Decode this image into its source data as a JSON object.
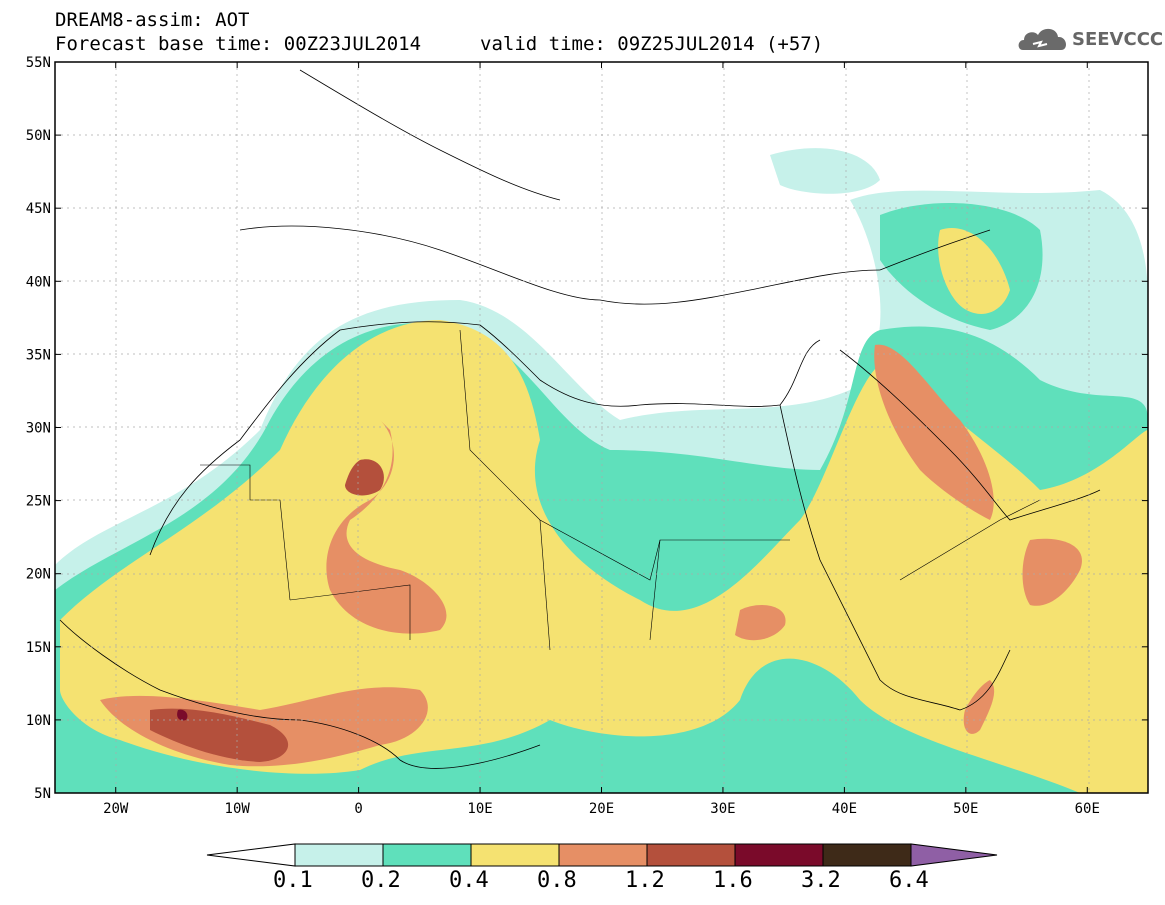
{
  "title": {
    "line1": "DREAM8-assim: AOT",
    "line2": "Forecast base time: 00Z23JUL2014",
    "valid": "valid time: 09Z25JUL2014 (+57)"
  },
  "logo": {
    "text": "SEEVCCC",
    "icon": "cloud-icon"
  },
  "map": {
    "lat_labels": [
      "55N",
      "50N",
      "45N",
      "40N",
      "35N",
      "30N",
      "25N",
      "20N",
      "15N",
      "10N",
      "5N"
    ],
    "lon_labels": [
      "20W",
      "10W",
      "0",
      "10E",
      "20E",
      "30E",
      "40E",
      "50E",
      "60E"
    ],
    "lon_range": [
      -25,
      65
    ],
    "lat_range": [
      5,
      55
    ]
  },
  "colorbar": {
    "labels": [
      "0.1",
      "0.2",
      "0.4",
      "0.8",
      "1.2",
      "1.6",
      "3.2",
      "6.4"
    ],
    "colors": [
      "#ffffff",
      "#c6f1ea",
      "#5fe0bb",
      "#f5e271",
      "#e68f65",
      "#b4503c",
      "#7a0a2a",
      "#3e2a18",
      "#8f5fa5"
    ]
  }
}
